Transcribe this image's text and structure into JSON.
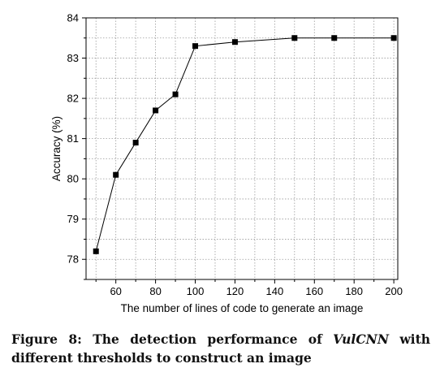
{
  "chart_data": {
    "type": "line",
    "xlabel": "The number of lines of code to generate an image",
    "ylabel": "Accuracy (%)",
    "xlim": [
      45,
      202
    ],
    "ylim": [
      77.5,
      84
    ],
    "xticks": [
      "60",
      "80",
      "100",
      "120",
      "140",
      "160",
      "180",
      "200"
    ],
    "yticks": [
      "78",
      "79",
      "80",
      "81",
      "82",
      "83",
      "84"
    ],
    "grid": true,
    "marker": "square",
    "color": "#000000",
    "series": [
      {
        "x": [
          50,
          60,
          70,
          80,
          90,
          100,
          120,
          150,
          170,
          200
        ],
        "values": [
          78.2,
          80.1,
          80.9,
          81.7,
          82.1,
          83.3,
          83.4,
          83.5,
          83.5,
          83.5
        ]
      }
    ]
  },
  "caption": {
    "prefix": "Figure 8: The detection performance of ",
    "emph": "VulCNN",
    "suffix": " with different thresholds to construct an image"
  }
}
